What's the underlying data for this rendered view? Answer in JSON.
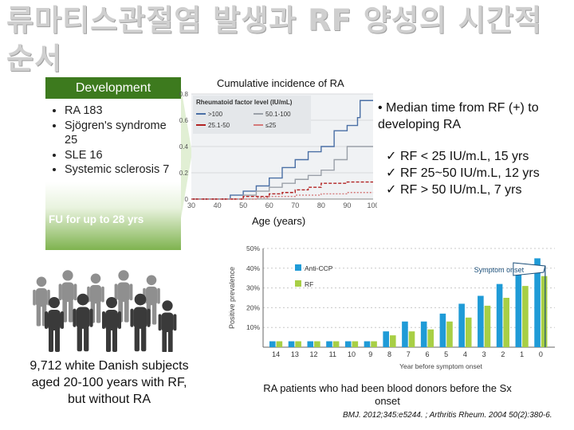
{
  "slide": {
    "title": "류마티스관절염 발생과 RF 양성의 시간적 순서",
    "development": {
      "banner": "Development",
      "items": [
        "RA 183",
        "Sjögren's syndrome 25",
        "SLE 16",
        "Systemic sclerosis 7"
      ],
      "followup": "FU for up to 28 yrs"
    },
    "subjects_text": "9,712 white Danish subjects aged 20-100 years with RF, but without RA",
    "cumulative_title": "Cumulative incidence of RA",
    "age_label": "Age (years)",
    "median_text": "• Median time from RF (+) to developing RA",
    "median_items": [
      "RF < 25 IU/m.L, 15 yrs",
      "RF 25~50 IU/m.L, 12 yrs",
      "RF > 50 IU/m.L, 7 yrs"
    ],
    "check_glyph": "✓",
    "chart2_caption": "RA patients who had been blood donors before the Sx onset",
    "citation": "BMJ. 2012;345:e5244. ; Arthritis Rheum. 2004 50(2):380-6."
  },
  "chart_data": [
    {
      "type": "line",
      "legend_title": "Rheumatoid factor level (IU/mL)",
      "x_ticks": [
        30,
        40,
        50,
        60,
        70,
        80,
        90,
        100
      ],
      "y_ticks": [
        0,
        0.2,
        0.4,
        0.6,
        0.8
      ],
      "xlim": [
        30,
        100
      ],
      "ylim": [
        0,
        0.8
      ],
      "legend_position": "top",
      "series": [
        {
          "name": ">100",
          "color": "#4a6fa5",
          "points": [
            [
              30,
              0
            ],
            [
              40,
              0
            ],
            [
              45,
              0.03
            ],
            [
              50,
              0.06
            ],
            [
              55,
              0.1
            ],
            [
              60,
              0.16
            ],
            [
              65,
              0.24
            ],
            [
              70,
              0.3
            ],
            [
              75,
              0.36
            ],
            [
              80,
              0.4
            ],
            [
              85,
              0.52
            ],
            [
              90,
              0.56
            ],
            [
              94,
              0.62
            ],
            [
              95,
              0.75
            ],
            [
              100,
              0.75
            ]
          ]
        },
        {
          "name": "50.1-100",
          "color": "#9aa0a8",
          "points": [
            [
              30,
              0
            ],
            [
              45,
              0
            ],
            [
              50,
              0.03
            ],
            [
              55,
              0.06
            ],
            [
              60,
              0.09
            ],
            [
              65,
              0.12
            ],
            [
              70,
              0.15
            ],
            [
              75,
              0.18
            ],
            [
              80,
              0.22
            ],
            [
              85,
              0.3
            ],
            [
              90,
              0.4
            ],
            [
              95,
              0.4
            ],
            [
              100,
              0.4
            ]
          ]
        },
        {
          "name": "25.1-50",
          "color": "#b22222",
          "points": [
            [
              30,
              0
            ],
            [
              45,
              0
            ],
            [
              50,
              0.02
            ],
            [
              60,
              0.04
            ],
            [
              65,
              0.05
            ],
            [
              70,
              0.07
            ],
            [
              75,
              0.09
            ],
            [
              80,
              0.12
            ],
            [
              90,
              0.13
            ],
            [
              100,
              0.13
            ]
          ]
        },
        {
          "name": "≤25",
          "color": "#d47a7a",
          "points": [
            [
              30,
              0
            ],
            [
              50,
              0
            ],
            [
              55,
              0.01
            ],
            [
              60,
              0.02
            ],
            [
              70,
              0.03
            ],
            [
              80,
              0.04
            ],
            [
              90,
              0.05
            ],
            [
              100,
              0.05
            ]
          ]
        }
      ]
    },
    {
      "type": "bar",
      "ylabel": "Positive prevalence",
      "xlabel": "Year before symptom onset",
      "categories": [
        "14",
        "13",
        "12",
        "11",
        "10",
        "9",
        "8",
        "7",
        "6",
        "5",
        "4",
        "3",
        "2",
        "1",
        "0"
      ],
      "y_ticks": [
        "10%",
        "20%",
        "30%",
        "40%",
        "50%"
      ],
      "ylim": [
        0,
        50
      ],
      "annotation": "Symptom onset",
      "series": [
        {
          "name": "Anti-CCP",
          "color": "#1f9bd7",
          "values": [
            3,
            3,
            3,
            3,
            3,
            3,
            8,
            13,
            13,
            17,
            22,
            26,
            32,
            37,
            45
          ]
        },
        {
          "name": "RF",
          "color": "#a8cf45",
          "values": [
            3,
            3,
            3,
            3,
            3,
            3,
            6,
            8,
            9,
            13,
            15,
            21,
            25,
            31,
            36
          ]
        }
      ]
    }
  ]
}
